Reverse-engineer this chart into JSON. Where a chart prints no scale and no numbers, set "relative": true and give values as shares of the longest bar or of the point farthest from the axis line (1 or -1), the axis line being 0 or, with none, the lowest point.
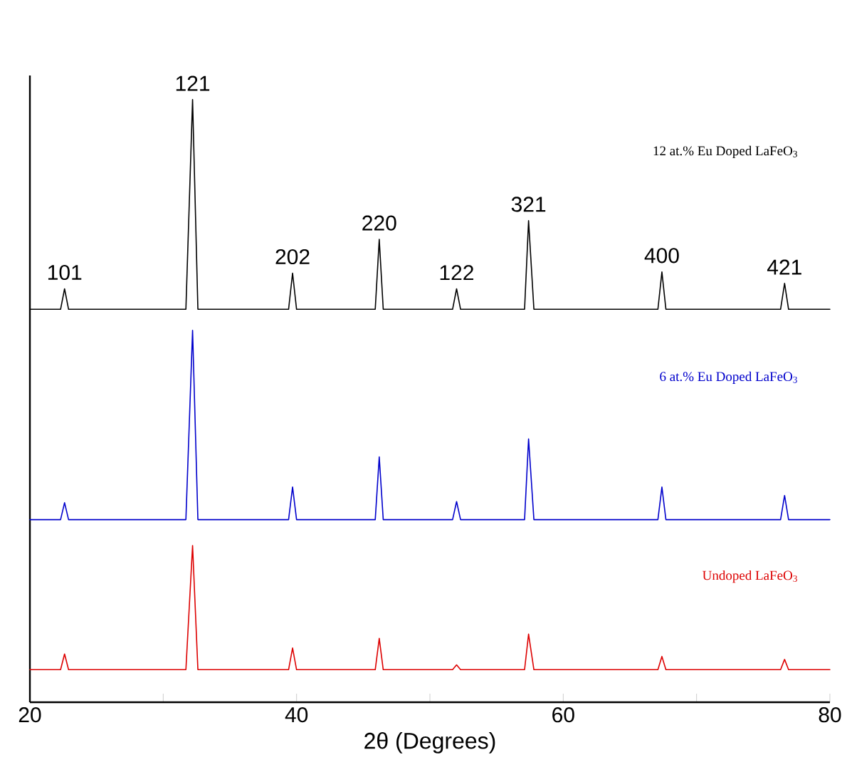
{
  "chart_data": {
    "type": "line",
    "relative": true,
    "xlabel": "2θ (Degrees)",
    "xlim": [
      20,
      80
    ],
    "xticks": [
      20,
      {
        "value": 30,
        "label": null
      },
      40,
      {
        "value": 50,
        "label": null
      },
      60,
      {
        "value": 70,
        "label": null
      },
      80
    ],
    "x": [
      20,
      22.3,
      22.6,
      22.9,
      31.7,
      32.2,
      32.6,
      39.4,
      39.7,
      40.0,
      45.9,
      46.2,
      46.5,
      51.7,
      52.0,
      52.3,
      57.1,
      57.4,
      57.8,
      67.1,
      67.4,
      67.7,
      76.3,
      76.6,
      76.9,
      80
    ],
    "series": [
      {
        "name": "12 at.% Eu Doped LaFeO$_{3}$",
        "color": "#000000",
        "values": [
          0.652,
          0.652,
          0.686,
          0.652,
          0.652,
          1.0,
          0.652,
          0.652,
          0.712,
          0.652,
          0.652,
          0.768,
          0.652,
          0.652,
          0.686,
          0.652,
          0.652,
          0.799,
          0.652,
          0.652,
          0.714,
          0.652,
          0.652,
          0.695,
          0.652,
          0.652
        ]
      },
      {
        "name": "6 at.% Eu Doped LaFeO$_{3}$",
        "color": "#0000cc",
        "values": [
          0.303,
          0.303,
          0.331,
          0.303,
          0.303,
          0.617,
          0.303,
          0.303,
          0.357,
          0.303,
          0.303,
          0.407,
          0.303,
          0.303,
          0.333,
          0.303,
          0.303,
          0.437,
          0.303,
          0.303,
          0.357,
          0.303,
          0.303,
          0.343,
          0.303,
          0.303
        ]
      },
      {
        "name": "Undoped LaFeO$_{3}$",
        "color": "#dd0000",
        "values": [
          0.054,
          0.054,
          0.08,
          0.054,
          0.054,
          0.26,
          0.054,
          0.054,
          0.09,
          0.054,
          0.054,
          0.106,
          0.054,
          0.054,
          0.062,
          0.054,
          0.054,
          0.113,
          0.054,
          0.054,
          0.076,
          0.054,
          0.054,
          0.071,
          0.054,
          0.054
        ]
      }
    ],
    "annotations": [
      {
        "text": "101",
        "x": 22.6,
        "y": 0.686
      },
      {
        "text": "121",
        "x": 32.2,
        "y": 1.0
      },
      {
        "text": "202",
        "x": 39.7,
        "y": 0.712
      },
      {
        "text": "220",
        "x": 46.2,
        "y": 0.768
      },
      {
        "text": "122",
        "x": 52.0,
        "y": 0.686
      },
      {
        "text": "321",
        "x": 57.4,
        "y": 0.799
      },
      {
        "text": "400",
        "x": 67.4,
        "y": 0.714
      },
      {
        "text": "421",
        "x": 76.6,
        "y": 0.695
      }
    ],
    "grid": false,
    "legend": false,
    "marker": "none",
    "line_style": "solid"
  }
}
